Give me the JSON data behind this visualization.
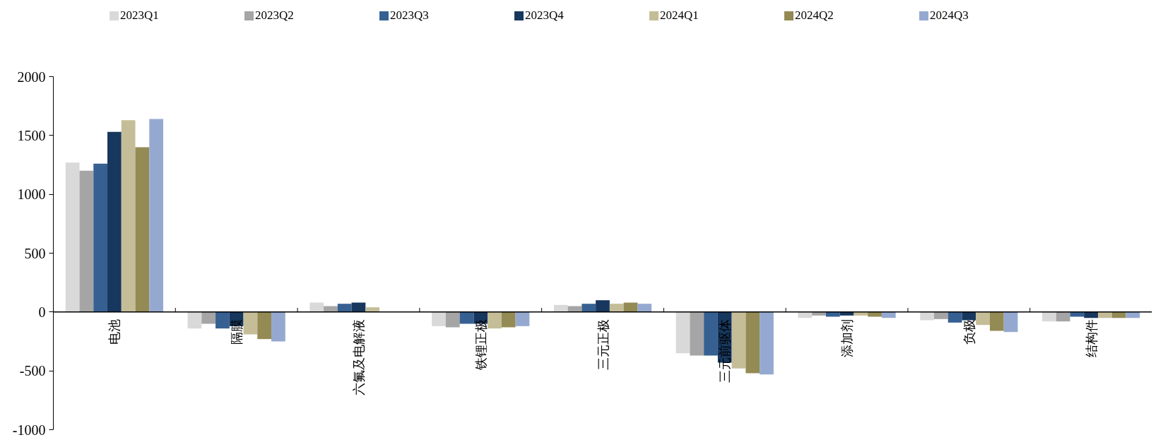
{
  "chart_data": {
    "type": "bar",
    "categories": [
      "电池",
      "隔膜",
      "六氟及电解液",
      "铁锂正极",
      "三元正极",
      "三元前驱体",
      "添加剂",
      "负极",
      "结构件"
    ],
    "series": [
      {
        "name": "2023Q1",
        "color": "#d9d9d9",
        "values": [
          1270,
          -140,
          80,
          -120,
          60,
          -350,
          -50,
          -70,
          -80
        ]
      },
      {
        "name": "2023Q2",
        "color": "#a5a5a5",
        "values": [
          1200,
          -100,
          50,
          -130,
          50,
          -370,
          -30,
          -60,
          -80
        ]
      },
      {
        "name": "2023Q3",
        "color": "#376092",
        "values": [
          1260,
          -140,
          70,
          -100,
          70,
          -370,
          -40,
          -90,
          -40
        ]
      },
      {
        "name": "2023Q4",
        "color": "#17375e",
        "values": [
          1530,
          -120,
          80,
          -100,
          100,
          -430,
          -30,
          -70,
          -50
        ]
      },
      {
        "name": "2024Q1",
        "color": "#c4bd97",
        "values": [
          1630,
          -190,
          40,
          -140,
          70,
          -480,
          -30,
          -110,
          -50
        ]
      },
      {
        "name": "2024Q2",
        "color": "#948a54",
        "values": [
          1400,
          -230,
          null,
          -130,
          80,
          -520,
          -40,
          -160,
          -50
        ]
      },
      {
        "name": "2024Q3",
        "color": "#95a9d0",
        "values": [
          1640,
          -250,
          null,
          -120,
          70,
          -530,
          -50,
          -170,
          -50
        ]
      }
    ],
    "ylim": [
      -1000,
      2000
    ],
    "yticks": [
      -1000,
      -500,
      0,
      500,
      1000,
      1500,
      2000
    ],
    "grid": false,
    "legend": "top"
  }
}
